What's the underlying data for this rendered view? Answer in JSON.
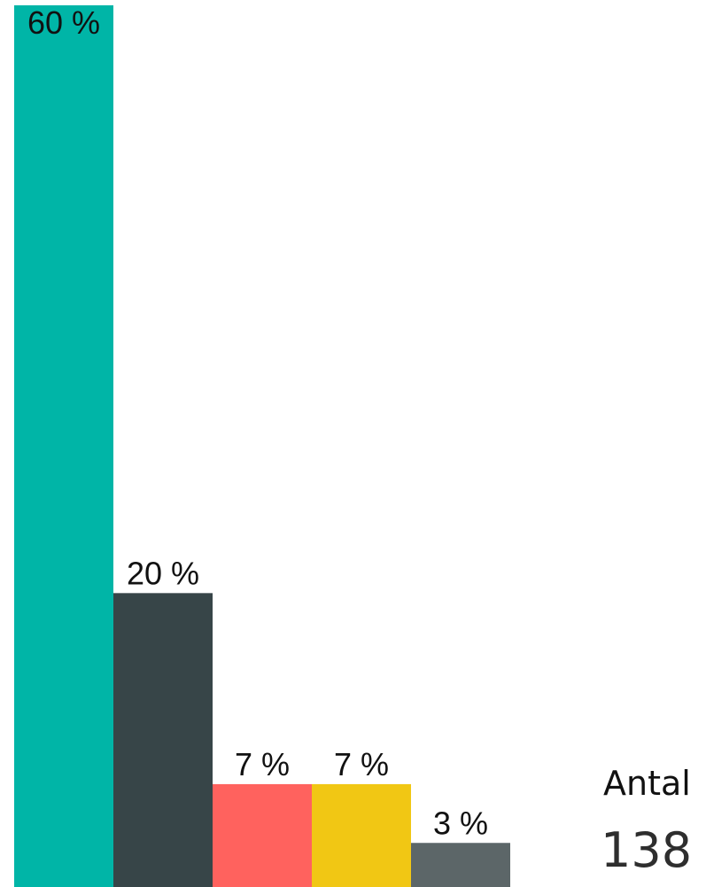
{
  "chart_data": {
    "type": "bar",
    "categories": [
      "",
      "",
      "",
      "",
      ""
    ],
    "values": [
      60,
      20,
      7,
      7,
      3
    ],
    "value_labels": [
      "60 %",
      "20 %",
      "7 %",
      "7 %",
      "3 %"
    ],
    "colors": [
      "#00b5a7",
      "#374548",
      "#ff625e",
      "#f1c714",
      "#5c6668"
    ],
    "title": "",
    "xlabel": "",
    "ylabel": "",
    "ylim": [
      0,
      60
    ],
    "grid": false,
    "legend": "none"
  },
  "summary": {
    "label": "Antal",
    "value": "138"
  }
}
